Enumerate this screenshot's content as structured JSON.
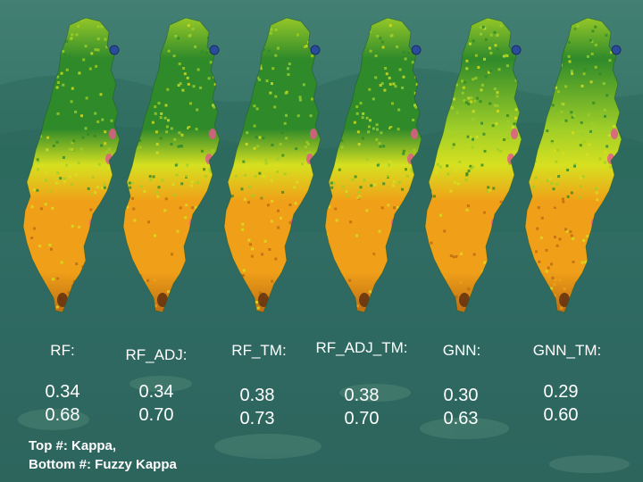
{
  "panels": [
    {
      "label": "RF:",
      "kappa": "0.34",
      "fuzzy_kappa": "0.68"
    },
    {
      "label": "RF_ADJ:",
      "kappa": "0.34",
      "fuzzy_kappa": "0.70"
    },
    {
      "label": "RF_TM:",
      "kappa": "0.38",
      "fuzzy_kappa": "0.73"
    },
    {
      "label": "RF_ADJ_TM:",
      "kappa": "0.38",
      "fuzzy_kappa": "0.70"
    },
    {
      "label": "GNN:",
      "kappa": "0.30",
      "fuzzy_kappa": "0.63"
    },
    {
      "label": "GNN_TM:",
      "kappa": "0.29",
      "fuzzy_kappa": "0.60"
    }
  ],
  "legend": {
    "line1": "Top #: Kappa,",
    "line2": "Bottom #: Fuzzy Kappa"
  },
  "colors": {
    "forest_dark": "#2f8a2a",
    "forest_light": "#9fce28",
    "yellow_green": "#d6e020",
    "orange": "#f0a018",
    "dark_orange": "#b86a14",
    "pink": "#e05a8a",
    "water": "#2a4a9a"
  }
}
